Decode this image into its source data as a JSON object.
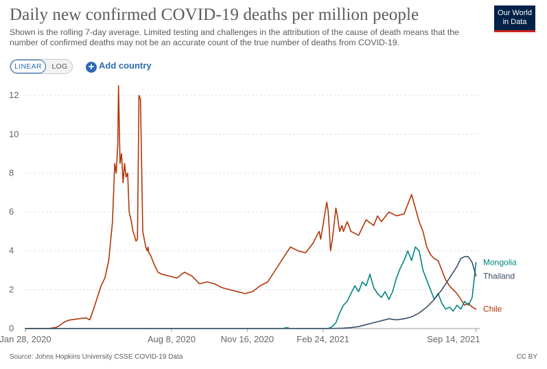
{
  "header": {
    "title": "Daily new confirmed COVID-19 deaths per million people",
    "subtitle": "Shown is the rolling 7-day average. Limited testing and challenges in the attribution of the cause of death means that the number of confirmed deaths may not be an accurate count of the true number of deaths from COVID-19."
  },
  "logo": {
    "line1": "Our World",
    "line2": "in Data"
  },
  "controls": {
    "linear_label": "LINEAR",
    "log_label": "LOG",
    "add_country_label": "Add country"
  },
  "footer": {
    "source": "Source: Johns Hopkins University CSSE COVID-19 Data",
    "license": "CC BY"
  },
  "chart_data": {
    "type": "line",
    "title": "Daily new confirmed COVID-19 deaths per million people",
    "xlabel": "",
    "ylabel": "",
    "x_domain": [
      0,
      600
    ],
    "ylim": [
      0,
      12.5
    ],
    "yticks": [
      0,
      2,
      4,
      6,
      8,
      10,
      12
    ],
    "xticks": [
      {
        "label": "Jan 28, 2020",
        "x": 0
      },
      {
        "label": "Aug 8, 2020",
        "x": 193
      },
      {
        "label": "Nov 16, 2020",
        "x": 293
      },
      {
        "label": "Feb 24, 2021",
        "x": 393
      },
      {
        "label": "Sep 14, 2021",
        "x": 595
      }
    ],
    "grid": true,
    "series": [
      {
        "name": "Chile",
        "color": "#b13507",
        "x": [
          0,
          30,
          40,
          45,
          50,
          55,
          60,
          70,
          80,
          85,
          90,
          95,
          100,
          105,
          110,
          115,
          118,
          120,
          122,
          123,
          124,
          125,
          127,
          129,
          131,
          133,
          135,
          137,
          140,
          142,
          144,
          146,
          148,
          150,
          152,
          155,
          157,
          158,
          159,
          160,
          161,
          162,
          163,
          165,
          167,
          170,
          175,
          180,
          190,
          200,
          210,
          220,
          225,
          230,
          240,
          250,
          260,
          270,
          280,
          290,
          300,
          310,
          320,
          330,
          335,
          340,
          345,
          350,
          360,
          370,
          380,
          385,
          388,
          390,
          395,
          398,
          400,
          403,
          405,
          408,
          410,
          412,
          415,
          418,
          420,
          425,
          430,
          440,
          450,
          460,
          465,
          470,
          480,
          490,
          500,
          510,
          520,
          525,
          530,
          535,
          540,
          545,
          550,
          555,
          560,
          565,
          570,
          575,
          580,
          585,
          590,
          595
        ],
        "values": [
          0,
          0,
          0.05,
          0.15,
          0.3,
          0.4,
          0.45,
          0.5,
          0.55,
          0.45,
          1.0,
          1.6,
          2.2,
          2.6,
          3.5,
          5.5,
          8.5,
          8.0,
          9.5,
          12.5,
          10.5,
          8.5,
          9.0,
          7.5,
          8.5,
          7.8,
          8.0,
          6.0,
          5.5,
          5.0,
          4.8,
          4.5,
          4.6,
          12.0,
          11.8,
          5.0,
          4.6,
          4.4,
          4.2,
          4.1,
          4.0,
          4.2,
          3.9,
          3.8,
          3.6,
          3.3,
          2.9,
          2.8,
          2.7,
          2.6,
          2.9,
          2.7,
          2.5,
          2.3,
          2.4,
          2.3,
          2.1,
          2.0,
          1.9,
          1.8,
          1.9,
          2.2,
          2.4,
          3.0,
          3.3,
          3.6,
          3.9,
          4.2,
          4.0,
          3.9,
          4.4,
          4.8,
          5.0,
          4.6,
          5.8,
          6.5,
          6.0,
          4.0,
          4.5,
          5.5,
          6.2,
          5.8,
          5.0,
          5.3,
          5.0,
          5.5,
          5.0,
          4.8,
          5.6,
          5.3,
          5.8,
          5.5,
          6.0,
          5.8,
          5.9,
          6.9,
          5.5,
          5.0,
          4.2,
          3.8,
          3.6,
          3.5,
          3.0,
          2.5,
          2.2,
          2.0,
          1.8,
          1.5,
          1.2,
          1.3,
          1.1,
          1.0
        ]
      },
      {
        "name": "Mongolia",
        "color": "#00847e",
        "x": [
          0,
          340,
          345,
          350,
          400,
          405,
          410,
          412,
          415,
          420,
          425,
          430,
          435,
          440,
          445,
          450,
          455,
          460,
          465,
          470,
          475,
          480,
          485,
          490,
          495,
          500,
          505,
          510,
          515,
          520,
          525,
          530,
          535,
          540,
          545,
          550,
          555,
          560,
          565,
          570,
          575,
          580,
          585,
          590,
          595
        ],
        "values": [
          0,
          0,
          0.05,
          0,
          0,
          0.1,
          0.3,
          0.5,
          0.8,
          1.2,
          1.4,
          1.8,
          2.2,
          1.9,
          2.4,
          2.2,
          2.8,
          2.1,
          1.8,
          1.6,
          1.9,
          1.5,
          1.9,
          2.6,
          3.1,
          3.5,
          4.0,
          3.5,
          4.2,
          4.0,
          3.0,
          2.5,
          2.0,
          1.5,
          1.8,
          1.3,
          1.0,
          1.1,
          0.9,
          1.2,
          1.0,
          1.4,
          1.2,
          1.6,
          3.4
        ]
      },
      {
        "name": "Thailand",
        "color": "#3c4e66",
        "x": [
          0,
          400,
          420,
          430,
          440,
          450,
          460,
          470,
          480,
          490,
          500,
          510,
          520,
          530,
          540,
          550,
          560,
          570,
          575,
          580,
          585,
          590,
          595
        ],
        "values": [
          0,
          0,
          0.02,
          0.05,
          0.1,
          0.2,
          0.3,
          0.4,
          0.5,
          0.45,
          0.5,
          0.6,
          0.8,
          1.1,
          1.5,
          2.0,
          2.6,
          3.2,
          3.6,
          3.7,
          3.7,
          3.4,
          2.7
        ]
      }
    ]
  }
}
